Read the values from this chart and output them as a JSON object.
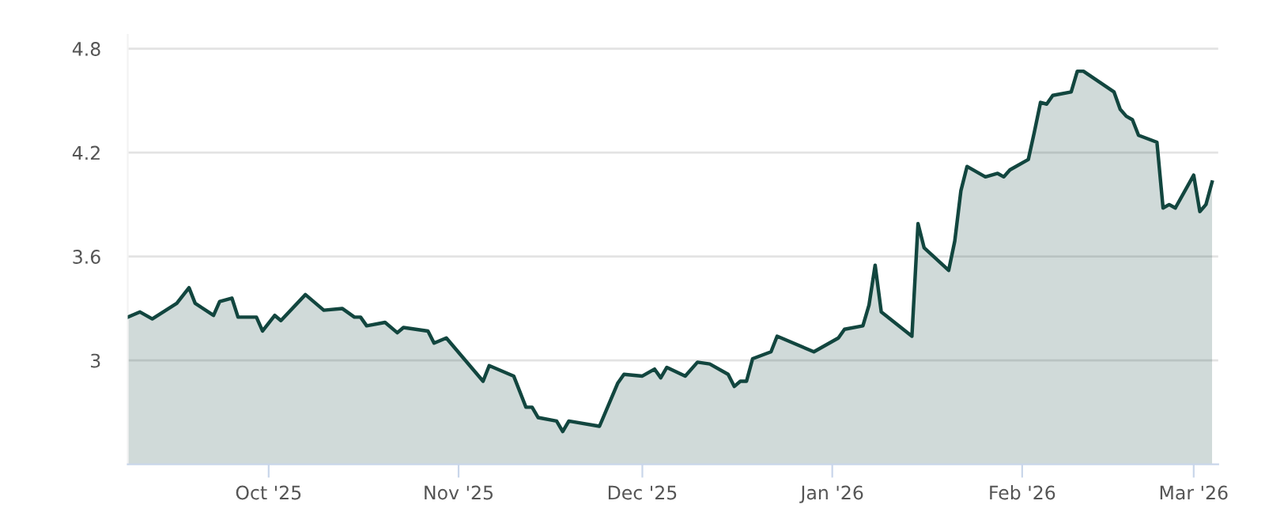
{
  "chart_data": {
    "type": "area",
    "x": [
      "2025-09-08",
      "2025-09-10",
      "2025-09-12",
      "2025-09-16",
      "2025-09-18",
      "2025-09-19",
      "2025-09-22",
      "2025-09-23",
      "2025-09-25",
      "2025-09-26",
      "2025-09-29",
      "2025-09-30",
      "2025-10-02",
      "2025-10-03",
      "2025-10-07",
      "2025-10-10",
      "2025-10-13",
      "2025-10-15",
      "2025-10-16",
      "2025-10-17",
      "2025-10-20",
      "2025-10-22",
      "2025-10-23",
      "2025-10-27",
      "2025-10-28",
      "2025-10-30",
      "2025-11-05",
      "2025-11-06",
      "2025-11-10",
      "2025-11-12",
      "2025-11-13",
      "2025-11-14",
      "2025-11-17",
      "2025-11-18",
      "2025-11-19",
      "2025-11-24",
      "2025-11-27",
      "2025-11-28",
      "2025-12-01",
      "2025-12-03",
      "2025-12-04",
      "2025-12-05",
      "2025-12-08",
      "2025-12-10",
      "2025-12-12",
      "2025-12-15",
      "2025-12-16",
      "2025-12-17",
      "2025-12-18",
      "2025-12-19",
      "2025-12-22",
      "2025-12-23",
      "2025-12-29",
      "2026-01-02",
      "2026-01-03",
      "2026-01-06",
      "2026-01-07",
      "2026-01-08",
      "2026-01-09",
      "2026-01-14",
      "2026-01-15",
      "2026-01-16",
      "2026-01-20",
      "2026-01-21",
      "2026-01-22",
      "2026-01-23",
      "2026-01-26",
      "2026-01-28",
      "2026-01-29",
      "2026-01-30",
      "2026-02-02",
      "2026-02-03",
      "2026-02-04",
      "2026-02-05",
      "2026-02-06",
      "2026-02-09",
      "2026-02-10",
      "2026-02-11",
      "2026-02-16",
      "2026-02-17",
      "2026-02-18",
      "2026-02-19",
      "2026-02-20",
      "2026-02-23",
      "2026-02-24",
      "2026-02-25",
      "2026-02-26",
      "2026-03-01",
      "2026-03-02",
      "2026-03-03",
      "2026-03-04"
    ],
    "series": [
      {
        "color": "#12463f",
        "values": [
          3.25,
          3.28,
          3.24,
          3.33,
          3.42,
          3.33,
          3.26,
          3.34,
          3.36,
          3.25,
          3.25,
          3.17,
          3.26,
          3.23,
          3.38,
          3.29,
          3.3,
          3.25,
          3.25,
          3.2,
          3.22,
          3.16,
          3.19,
          3.17,
          3.1,
          3.13,
          2.88,
          2.97,
          2.91,
          2.73,
          2.73,
          2.67,
          2.65,
          2.59,
          2.65,
          2.62,
          2.87,
          2.92,
          2.91,
          2.95,
          2.9,
          2.96,
          2.91,
          2.99,
          2.98,
          2.92,
          2.85,
          2.88,
          2.88,
          3.01,
          3.05,
          3.14,
          3.05,
          3.13,
          3.18,
          3.2,
          3.32,
          3.55,
          3.28,
          3.14,
          3.79,
          3.65,
          3.52,
          3.69,
          3.98,
          4.12,
          4.06,
          4.08,
          4.06,
          4.1,
          4.16,
          4.32,
          4.49,
          4.48,
          4.53,
          4.55,
          4.67,
          4.67,
          4.55,
          4.45,
          4.41,
          4.39,
          4.3,
          4.26,
          3.88,
          3.9,
          3.88,
          4.07,
          3.86,
          3.9,
          4.03
        ]
      }
    ],
    "xlim": [
      "2025-09-08",
      "2026-03-05"
    ],
    "xticks": [
      {
        "value": "2025-10-01",
        "label": "Oct '25"
      },
      {
        "value": "2025-11-01",
        "label": "Nov '25"
      },
      {
        "value": "2025-12-01",
        "label": "Dec '25"
      },
      {
        "value": "2026-01-01",
        "label": "Jan '26"
      },
      {
        "value": "2026-02-01",
        "label": "Feb '26"
      },
      {
        "value": "2026-03-01",
        "label": "Mar '26"
      }
    ],
    "ylim": [
      2.4,
      4.88
    ],
    "yticks": [
      3,
      {
        "value": 3.6,
        "label": "3.6"
      },
      {
        "value": 4.2,
        "label": "4.2"
      },
      {
        "value": 4.8,
        "label": "4.8"
      }
    ],
    "grid": "y",
    "legend": false
  }
}
